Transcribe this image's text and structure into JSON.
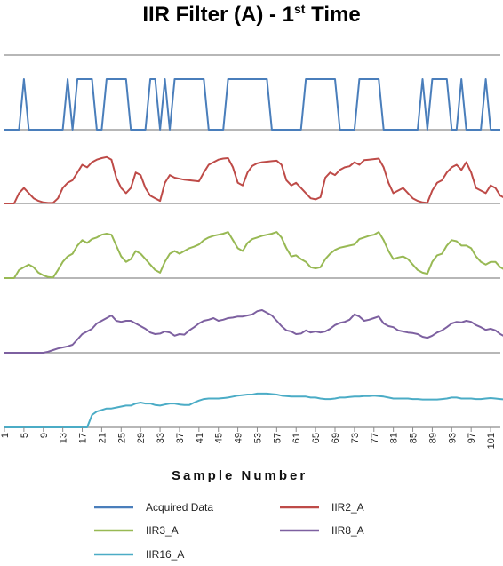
{
  "title": {
    "main": "IIR Filter (A) - 1",
    "sup": "st",
    "tail": " Time"
  },
  "chart_data": {
    "type": "line",
    "title": "IIR Filter (A) - 1st Time",
    "xlabel": "Sample Number",
    "ylabel": "",
    "x_tick_labels": [
      "1",
      "5",
      "9",
      "13",
      "17",
      "21",
      "25",
      "29",
      "33",
      "37",
      "41",
      "45",
      "49",
      "53",
      "57",
      "61",
      "65",
      "69",
      "73",
      "77",
      "81",
      "85",
      "89",
      "93",
      "97",
      "101"
    ],
    "xlim": [
      1,
      103
    ],
    "grid": true,
    "legend_position": "bottom",
    "series": [
      {
        "name": "Acquired Data",
        "color": "#4a7ebb",
        "values": [
          0,
          0,
          0,
          0,
          1,
          0,
          0,
          0,
          0,
          0,
          0,
          0,
          0,
          1,
          0,
          1,
          1,
          1,
          1,
          0,
          0,
          1,
          1,
          1,
          1,
          1,
          0,
          0,
          0,
          0,
          1,
          1,
          0,
          1,
          0,
          1,
          1,
          1,
          1,
          1,
          1,
          1,
          0,
          0,
          0,
          0,
          1,
          1,
          1,
          1,
          1,
          1,
          1,
          1,
          1,
          0,
          0,
          0,
          0,
          0,
          0,
          0,
          1,
          1,
          1,
          1,
          1,
          1,
          1,
          0,
          0,
          0,
          0,
          1,
          1,
          1,
          1,
          1,
          0,
          0,
          0,
          0,
          0,
          0,
          0,
          0,
          1,
          0,
          1,
          1,
          1,
          1,
          0,
          0,
          1,
          0,
          0,
          0,
          0,
          1,
          0,
          0,
          0
        ]
      },
      {
        "name": "IIR2_A",
        "color": "#be4b48",
        "values": [
          0,
          0,
          0,
          0.2,
          0.3,
          0.2,
          0.1,
          0.05,
          0.02,
          0.01,
          0.01,
          0.1,
          0.3,
          0.4,
          0.45,
          0.6,
          0.75,
          0.7,
          0.8,
          0.85,
          0.88,
          0.9,
          0.85,
          0.5,
          0.3,
          0.2,
          0.3,
          0.6,
          0.55,
          0.3,
          0.15,
          0.1,
          0.05,
          0.4,
          0.55,
          0.5,
          0.48,
          0.46,
          0.45,
          0.44,
          0.43,
          0.6,
          0.75,
          0.8,
          0.85,
          0.87,
          0.88,
          0.7,
          0.4,
          0.35,
          0.6,
          0.73,
          0.78,
          0.8,
          0.81,
          0.82,
          0.83,
          0.75,
          0.45,
          0.35,
          0.4,
          0.3,
          0.2,
          0.1,
          0.08,
          0.12,
          0.5,
          0.6,
          0.55,
          0.65,
          0.7,
          0.72,
          0.8,
          0.75,
          0.84,
          0.85,
          0.86,
          0.87,
          0.7,
          0.4,
          0.2,
          0.25,
          0.3,
          0.2,
          0.1,
          0.05,
          0.02,
          0.01,
          0.25,
          0.4,
          0.45,
          0.6,
          0.7,
          0.75,
          0.65,
          0.8,
          0.6,
          0.3,
          0.25,
          0.2,
          0.35,
          0.3,
          0.15,
          0.1,
          0.03,
          0.01
        ]
      },
      {
        "name": "IIR3_A",
        "color": "#98b954",
        "values": [
          0,
          0,
          0,
          0.15,
          0.2,
          0.25,
          0.2,
          0.1,
          0.05,
          0.02,
          0.01,
          0.15,
          0.3,
          0.4,
          0.45,
          0.6,
          0.7,
          0.65,
          0.72,
          0.75,
          0.8,
          0.82,
          0.8,
          0.6,
          0.4,
          0.3,
          0.35,
          0.5,
          0.45,
          0.35,
          0.25,
          0.15,
          0.1,
          0.3,
          0.45,
          0.5,
          0.45,
          0.5,
          0.55,
          0.58,
          0.62,
          0.7,
          0.75,
          0.78,
          0.8,
          0.82,
          0.85,
          0.7,
          0.55,
          0.5,
          0.65,
          0.72,
          0.75,
          0.78,
          0.8,
          0.82,
          0.85,
          0.75,
          0.55,
          0.4,
          0.42,
          0.35,
          0.3,
          0.2,
          0.18,
          0.2,
          0.35,
          0.45,
          0.52,
          0.56,
          0.58,
          0.6,
          0.62,
          0.72,
          0.75,
          0.78,
          0.8,
          0.85,
          0.7,
          0.5,
          0.35,
          0.38,
          0.4,
          0.35,
          0.25,
          0.15,
          0.1,
          0.08,
          0.3,
          0.42,
          0.45,
          0.6,
          0.7,
          0.68,
          0.6,
          0.6,
          0.55,
          0.4,
          0.3,
          0.25,
          0.3,
          0.3,
          0.2,
          0.15,
          0.1,
          0.08
        ]
      },
      {
        "name": "IIR8_A",
        "color": "#7d60a0",
        "values": [
          0,
          0,
          0,
          0,
          0,
          0,
          0,
          0,
          0,
          0.02,
          0.05,
          0.08,
          0.1,
          0.12,
          0.15,
          0.25,
          0.35,
          0.4,
          0.45,
          0.55,
          0.6,
          0.65,
          0.7,
          0.6,
          0.58,
          0.6,
          0.6,
          0.55,
          0.5,
          0.45,
          0.38,
          0.35,
          0.36,
          0.4,
          0.38,
          0.32,
          0.35,
          0.34,
          0.42,
          0.48,
          0.55,
          0.6,
          0.62,
          0.65,
          0.6,
          0.62,
          0.65,
          0.66,
          0.68,
          0.68,
          0.7,
          0.72,
          0.78,
          0.8,
          0.75,
          0.7,
          0.6,
          0.5,
          0.42,
          0.4,
          0.35,
          0.36,
          0.42,
          0.38,
          0.4,
          0.38,
          0.4,
          0.45,
          0.52,
          0.56,
          0.58,
          0.62,
          0.72,
          0.68,
          0.6,
          0.62,
          0.65,
          0.68,
          0.55,
          0.5,
          0.48,
          0.42,
          0.4,
          0.38,
          0.37,
          0.35,
          0.3,
          0.28,
          0.32,
          0.38,
          0.42,
          0.48,
          0.55,
          0.58,
          0.57,
          0.6,
          0.58,
          0.52,
          0.48,
          0.43,
          0.45,
          0.42,
          0.35,
          0.3,
          0.28,
          0.27
        ]
      },
      {
        "name": "IIR16_A",
        "color": "#4bacc6",
        "values": [
          0,
          0,
          0,
          0,
          0,
          0,
          0,
          0,
          0,
          0,
          0,
          0,
          0,
          0,
          0,
          0,
          0,
          0,
          0.25,
          0.32,
          0.35,
          0.38,
          0.38,
          0.4,
          0.42,
          0.44,
          0.44,
          0.48,
          0.5,
          0.48,
          0.48,
          0.45,
          0.44,
          0.46,
          0.48,
          0.48,
          0.46,
          0.45,
          0.45,
          0.5,
          0.54,
          0.57,
          0.58,
          0.58,
          0.58,
          0.59,
          0.6,
          0.62,
          0.64,
          0.65,
          0.66,
          0.66,
          0.68,
          0.68,
          0.68,
          0.67,
          0.66,
          0.64,
          0.63,
          0.62,
          0.62,
          0.62,
          0.62,
          0.6,
          0.6,
          0.58,
          0.57,
          0.57,
          0.58,
          0.6,
          0.6,
          0.61,
          0.62,
          0.62,
          0.63,
          0.63,
          0.64,
          0.63,
          0.62,
          0.6,
          0.58,
          0.58,
          0.58,
          0.58,
          0.57,
          0.57,
          0.56,
          0.56,
          0.56,
          0.56,
          0.57,
          0.58,
          0.6,
          0.6,
          0.58,
          0.58,
          0.58,
          0.57,
          0.57,
          0.58,
          0.59,
          0.58,
          0.57,
          0.56,
          0.55,
          0.53
        ]
      }
    ]
  }
}
